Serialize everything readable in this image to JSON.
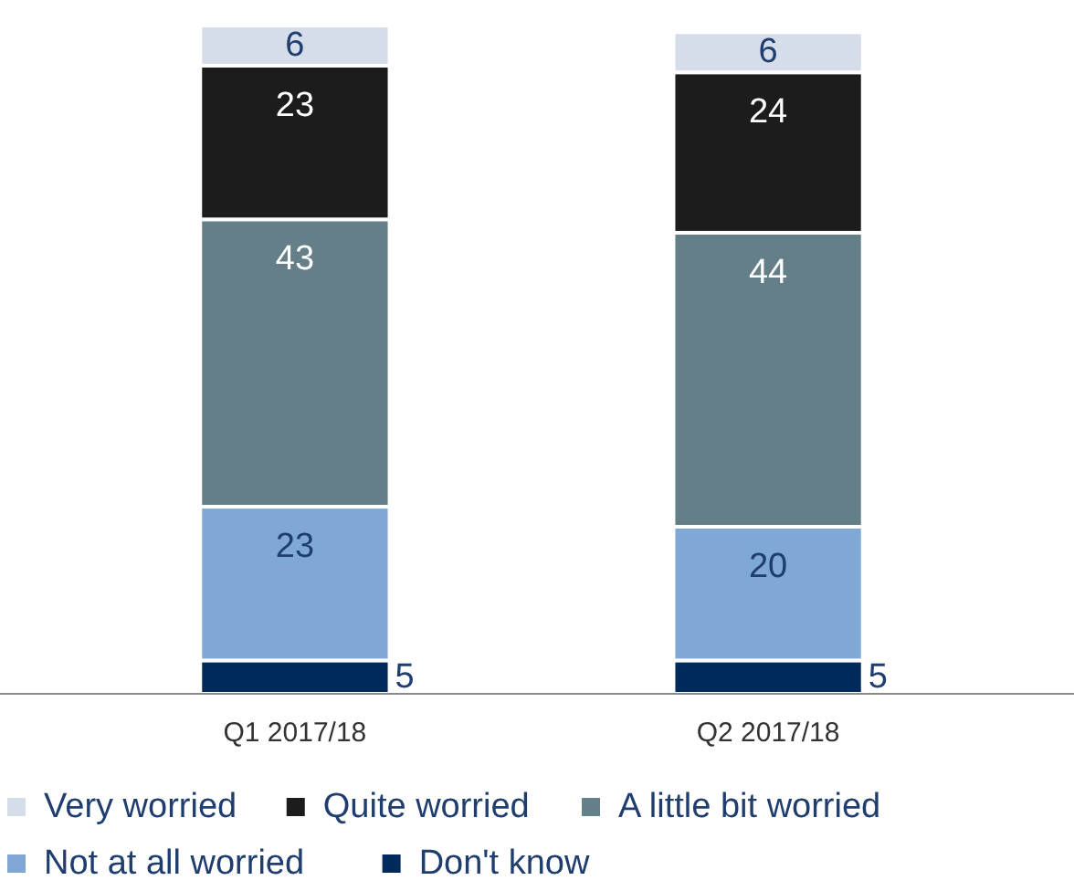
{
  "chart_data": {
    "type": "bar",
    "stacked": true,
    "data_labels": true,
    "legend": "bottom",
    "categories": [
      "Q1 2017/18",
      "Q2 2017/18"
    ],
    "series": [
      {
        "name": "Don't know",
        "color": "#002a5c",
        "values": [
          5,
          5
        ]
      },
      {
        "name": "Not at all worried",
        "color": "#80a8d6",
        "values": [
          23,
          20
        ]
      },
      {
        "name": "A little bit worried",
        "color": "#647f88",
        "values": [
          43,
          44
        ]
      },
      {
        "name": "Quite worried",
        "color": "#1c1c1c",
        "values": [
          23,
          24
        ]
      },
      {
        "name": "Very worried",
        "color": "#d5ddeb",
        "values": [
          6,
          6
        ]
      }
    ]
  }
}
